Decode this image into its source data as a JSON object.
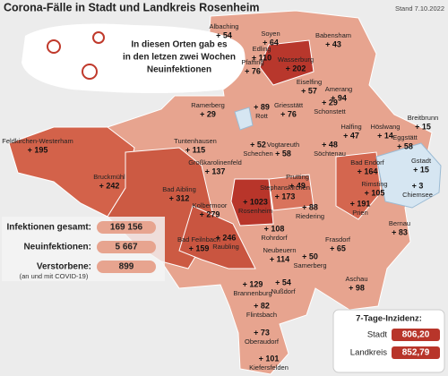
{
  "header": {
    "title": "Corona-Fälle in Stadt und Landkreis Rosenheim",
    "date": "Stand 7.10.2022"
  },
  "callout": [
    "In diesen Orten gab es",
    "in den letzen zwei Wochen",
    "Neuinfektionen"
  ],
  "stats": [
    {
      "label": "Infektionen gesamt:",
      "value": "169 156"
    },
    {
      "label": "Neuinfektionen:",
      "value": "5 667"
    },
    {
      "label": "Verstorbene:",
      "value": "899",
      "note": "(an und mit COVID-19)"
    }
  ],
  "incidence": {
    "title": "7-Tage-Inzidenz:",
    "rows": [
      {
        "label": "Stadt",
        "value": "806,20"
      },
      {
        "label": "Landkreis",
        "value": "852,79"
      }
    ]
  },
  "places": [
    {
      "name": "Albaching",
      "value": "+ 54"
    },
    {
      "name": "Soyen",
      "value": "+ 64"
    },
    {
      "name": "Babensham",
      "value": "+ 43"
    },
    {
      "name": "Edling",
      "value": "+ 110"
    },
    {
      "name": "Wasserburg",
      "value": "+ 202"
    },
    {
      "name": "Pfaffing",
      "value": "+ 76"
    },
    {
      "name": "Eiselfing",
      "value": "+ 57"
    },
    {
      "name": "Amerang",
      "value": "+ 94"
    },
    {
      "name": "Ramerberg",
      "value": "+ 29"
    },
    {
      "name": "Rott",
      "value": "+ 89"
    },
    {
      "name": "Griesstätt",
      "value": "+ 76"
    },
    {
      "name": "Schonstett",
      "value": "+ 29"
    },
    {
      "name": "Breitbrunn",
      "value": "+ 15"
    },
    {
      "name": "Tuntenhausen",
      "value": "+ 115"
    },
    {
      "name": "Schechen",
      "value": "+ 52"
    },
    {
      "name": "Vogtareuth",
      "value": "+ 58"
    },
    {
      "name": "Söchtenau",
      "value": "+ 48"
    },
    {
      "name": "Halfing",
      "value": "+ 47"
    },
    {
      "name": "Höslwang",
      "value": "+ 14"
    },
    {
      "name": "Eggstätt",
      "value": "+ 58"
    },
    {
      "name": "Gstadt",
      "value": "+ 15"
    },
    {
      "name": "Feldkirchen-Westerham",
      "value": "+ 195"
    },
    {
      "name": "Großkarolinenfeld",
      "value": "+ 137"
    },
    {
      "name": "Bruckmühl",
      "value": "+ 242"
    },
    {
      "name": "Bad Endorf",
      "value": "+ 164"
    },
    {
      "name": "Prutting",
      "value": "+ 49"
    },
    {
      "name": "Stephanskirchen",
      "value": "+ 173"
    },
    {
      "name": "Rimsting",
      "value": "+ 105"
    },
    {
      "name": "Chiemsee",
      "value": "+ 3"
    },
    {
      "name": "Bad Aibling",
      "value": "+ 312"
    },
    {
      "name": "Kolbermoor",
      "value": "+ 279"
    },
    {
      "name": "Rosenheim",
      "value": "+ 1023"
    },
    {
      "name": "Riedering",
      "value": "+ 88"
    },
    {
      "name": "Prien",
      "value": "+ 191"
    },
    {
      "name": "Bernau",
      "value": "+ 83"
    },
    {
      "name": "Rohrdorf",
      "value": "+ 108"
    },
    {
      "name": "Bad Feilnbach",
      "value": "+ 159"
    },
    {
      "name": "Raubling",
      "value": "+ 246"
    },
    {
      "name": "Neubeuern",
      "value": "+ 114"
    },
    {
      "name": "Samerberg",
      "value": "+ 50"
    },
    {
      "name": "Frasdorf",
      "value": "+ 65"
    },
    {
      "name": "Aschau",
      "value": "+ 98"
    },
    {
      "name": "Brannenburg",
      "value": "+ 129"
    },
    {
      "name": "Nußdorf",
      "value": "+ 54"
    },
    {
      "name": "Flintsbach",
      "value": "+ 82"
    },
    {
      "name": "Oberaudorf",
      "value": "+ 73"
    },
    {
      "name": "Kiefersfelden",
      "value": "+ 101"
    }
  ]
}
